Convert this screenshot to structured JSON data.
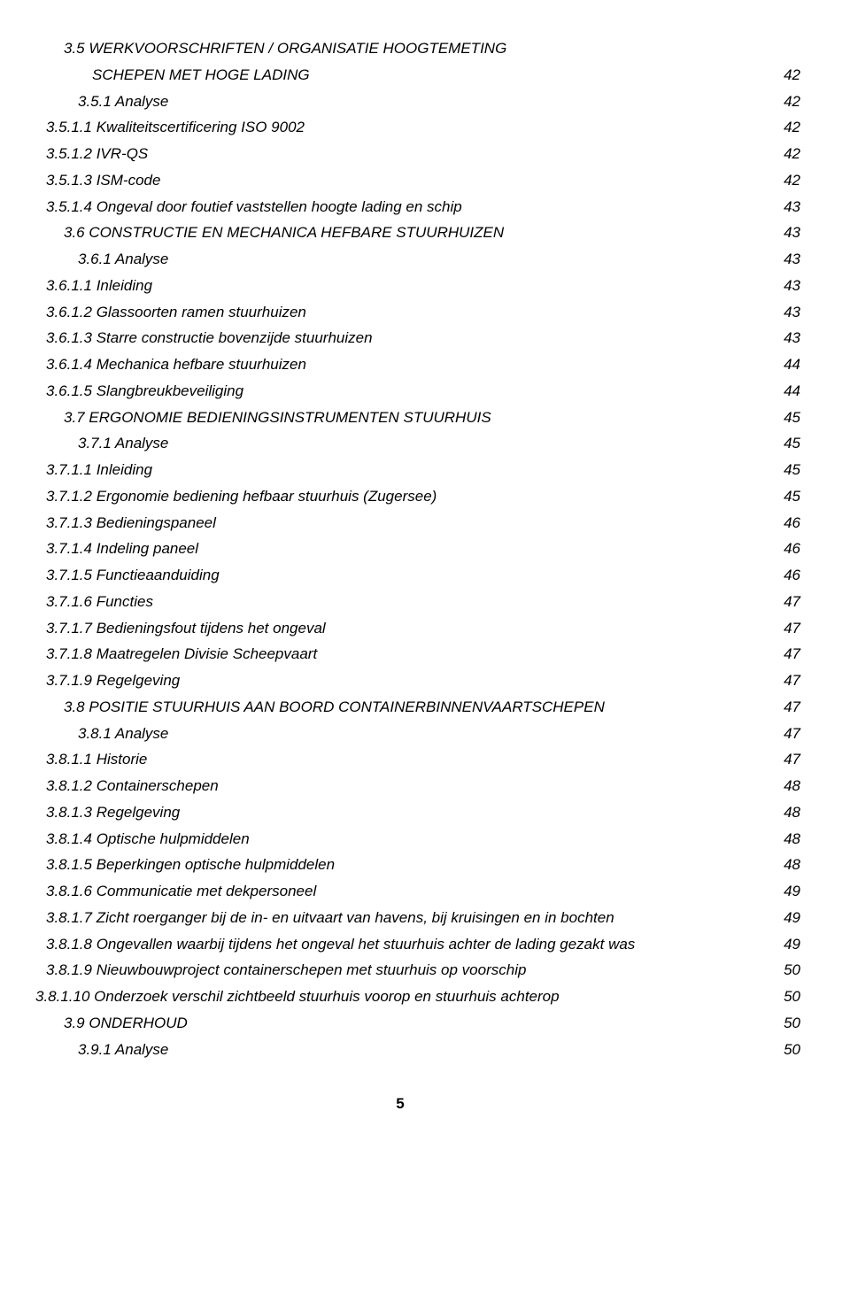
{
  "entries": [
    {
      "level": 1,
      "text": "3.5 WERKVOORSCHRIFTEN / ORGANISATIE HOOGTEMETING",
      "page": ""
    },
    {
      "level": 1,
      "text": "SCHEPEN MET HOGE LADING",
      "page": "42",
      "continuation": true
    },
    {
      "level": 2,
      "text": "3.5.1 Analyse",
      "page": "42"
    },
    {
      "level": 3,
      "text": "3.5.1.1 Kwaliteitscertificering ISO 9002",
      "page": "42"
    },
    {
      "level": 3,
      "text": "3.5.1.2 IVR-QS",
      "page": "42"
    },
    {
      "level": 3,
      "text": "3.5.1.3 ISM-code",
      "page": "42"
    },
    {
      "level": 3,
      "text": "3.5.1.4 Ongeval door foutief vaststellen hoogte lading en schip",
      "page": "43"
    },
    {
      "level": 1,
      "text": "3.6 CONSTRUCTIE EN MECHANICA HEFBARE STUURHUIZEN",
      "page": "43"
    },
    {
      "level": 2,
      "text": "3.6.1 Analyse",
      "page": "43"
    },
    {
      "level": 3,
      "text": "3.6.1.1 Inleiding",
      "page": "43"
    },
    {
      "level": 3,
      "text": "3.6.1.2 Glassoorten ramen stuurhuizen",
      "page": "43"
    },
    {
      "level": 3,
      "text": "3.6.1.3 Starre constructie bovenzijde stuurhuizen",
      "page": "43"
    },
    {
      "level": 3,
      "text": "3.6.1.4 Mechanica hefbare stuurhuizen",
      "page": "44"
    },
    {
      "level": 3,
      "text": "3.6.1.5 Slangbreukbeveiliging",
      "page": "44"
    },
    {
      "level": 1,
      "text": "3.7 ERGONOMIE BEDIENINGSINSTRUMENTEN STUURHUIS",
      "page": "45"
    },
    {
      "level": 2,
      "text": "3.7.1 Analyse",
      "page": "45"
    },
    {
      "level": 3,
      "text": "3.7.1.1 Inleiding",
      "page": "45"
    },
    {
      "level": 3,
      "text": "3.7.1.2 Ergonomie bediening hefbaar stuurhuis (Zugersee)",
      "page": "45"
    },
    {
      "level": 3,
      "text": "3.7.1.3 Bedieningspaneel",
      "page": "46"
    },
    {
      "level": 3,
      "text": "3.7.1.4 Indeling paneel",
      "page": "46"
    },
    {
      "level": 3,
      "text": "3.7.1.5 Functieaanduiding",
      "page": "46"
    },
    {
      "level": 3,
      "text": "3.7.1.6 Functies",
      "page": "47"
    },
    {
      "level": 3,
      "text": "3.7.1.7 Bedieningsfout tijdens het ongeval",
      "page": "47"
    },
    {
      "level": 3,
      "text": "3.7.1.8 Maatregelen Divisie Scheepvaart",
      "page": "47"
    },
    {
      "level": 3,
      "text": "3.7.1.9 Regelgeving",
      "page": "47"
    },
    {
      "level": 1,
      "text": "3.8 POSITIE STUURHUIS AAN BOORD CONTAINERBINNENVAARTSCHEPEN",
      "page": "47"
    },
    {
      "level": 2,
      "text": "3.8.1 Analyse",
      "page": "47"
    },
    {
      "level": 3,
      "text": "3.8.1.1 Historie",
      "page": "47"
    },
    {
      "level": 3,
      "text": "3.8.1.2 Containerschepen",
      "page": "48"
    },
    {
      "level": 3,
      "text": "3.8.1.3 Regelgeving",
      "page": "48"
    },
    {
      "level": 3,
      "text": "3.8.1.4 Optische hulpmiddelen",
      "page": "48"
    },
    {
      "level": 3,
      "text": "3.8.1.5 Beperkingen optische hulpmiddelen",
      "page": "48"
    },
    {
      "level": 3,
      "text": "3.8.1.6 Communicatie met dekpersoneel",
      "page": "49"
    },
    {
      "level": 3,
      "text": "3.8.1.7 Zicht roerganger bij de in- en uitvaart van havens, bij kruisingen en in bochten",
      "page": "49"
    },
    {
      "level": 3,
      "text": "3.8.1.8 Ongevallen waarbij tijdens het ongeval het stuurhuis achter de lading gezakt was",
      "page": "49"
    },
    {
      "level": 3,
      "text": "3.8.1.9 Nieuwbouwproject containerschepen met stuurhuis op voorschip",
      "page": "50"
    },
    {
      "level": 4,
      "text": "3.8.1.10 Onderzoek verschil zichtbeeld stuurhuis voorop en stuurhuis achterop",
      "page": "50"
    },
    {
      "level": 1,
      "text": "3.9 ONDERHOUD",
      "page": "50"
    },
    {
      "level": 2,
      "text": "3.9.1 Analyse",
      "page": "50"
    }
  ],
  "page_number": "5"
}
